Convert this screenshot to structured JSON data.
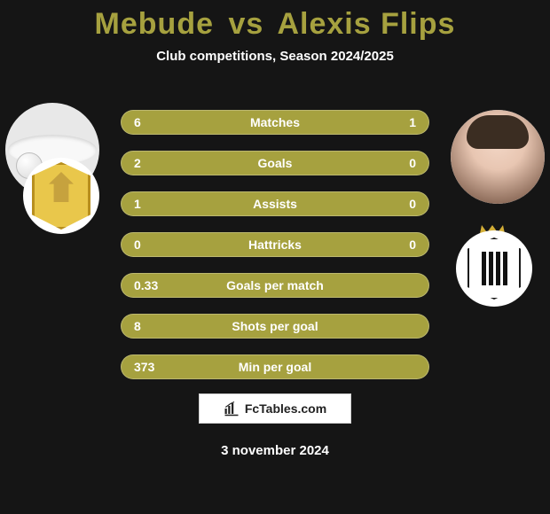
{
  "background_color": "#151515",
  "title": {
    "player1": "Mebude",
    "vs": "vs",
    "player2": "Alexis Flips",
    "color": "#a6a13f",
    "fontsize": 34
  },
  "subtitle": {
    "text": "Club competitions, Season 2024/2025",
    "color": "#ffffff",
    "fontsize": 15
  },
  "club_left_badge_bg": "#ffffff",
  "club_right_badge_bg": "#ffffff",
  "stats": {
    "row_bg": "#a6a13f",
    "text_color": "#ffffff",
    "rows": [
      {
        "left": "6",
        "label": "Matches",
        "right": "1"
      },
      {
        "left": "2",
        "label": "Goals",
        "right": "0"
      },
      {
        "left": "1",
        "label": "Assists",
        "right": "0"
      },
      {
        "left": "0",
        "label": "Hattricks",
        "right": "0"
      },
      {
        "left": "0.33",
        "label": "Goals per match",
        "right": ""
      },
      {
        "left": "8",
        "label": "Shots per goal",
        "right": ""
      },
      {
        "left": "373",
        "label": "Min per goal",
        "right": ""
      }
    ]
  },
  "branding": {
    "text": "FcTables.com",
    "bg": "#ffffff",
    "border": "#cfcfcf"
  },
  "date": {
    "text": "3 november 2024",
    "color": "#ffffff"
  }
}
